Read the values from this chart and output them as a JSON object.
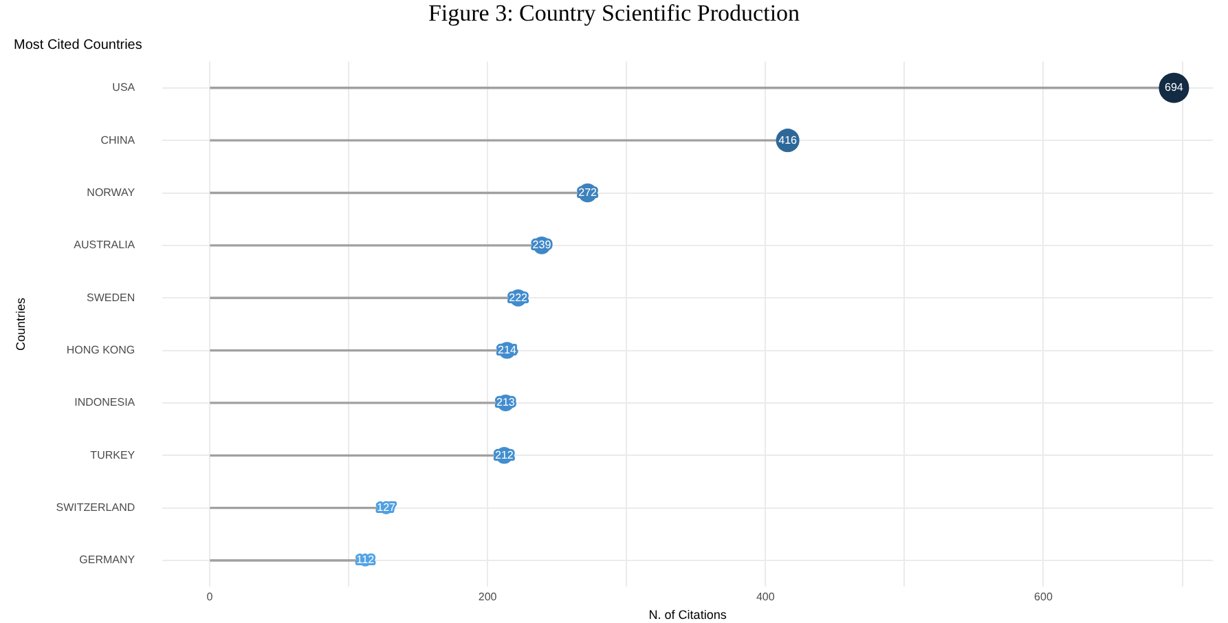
{
  "chart_data": {
    "type": "lollipop",
    "title": "Most Cited Countries",
    "xlabel": "N. of Citations",
    "ylabel": "Countries",
    "annotations": [
      "Figure 3: Country Scientific Production"
    ],
    "orientation": "horizontal",
    "categories": [
      "USA",
      "CHINA",
      "NORWAY",
      "AUSTRALIA",
      "SWEDEN",
      "HONG KONG",
      "INDONESIA",
      "TURKEY",
      "SWITZERLAND",
      "GERMANY"
    ],
    "values": [
      694,
      416,
      272,
      239,
      222,
      214,
      213,
      212,
      127,
      112
    ],
    "sizes": [
      1,
      0.6,
      0.39,
      0.34,
      0.32,
      0.31,
      0.31,
      0.31,
      0.18,
      0.16
    ],
    "colors": [
      "#132b43",
      "#2e6899",
      "#3d82bd",
      "#3f88c8",
      "#418ccd",
      "#428dcf",
      "#428dcf",
      "#428ecf",
      "#4f9fe2",
      "#51a3e6"
    ],
    "color": "#a0a0a0",
    "xlim": [
      -34,
      722
    ],
    "xticks": [
      0,
      {
        "value": 100,
        "label": null
      },
      200,
      {
        "value": 300,
        "label": null
      },
      400,
      {
        "value": 500,
        "label": null
      },
      600,
      {
        "value": 700,
        "label": null
      }
    ],
    "grid": true,
    "data_labels": true,
    "marker": "circle",
    "legend": false
  }
}
